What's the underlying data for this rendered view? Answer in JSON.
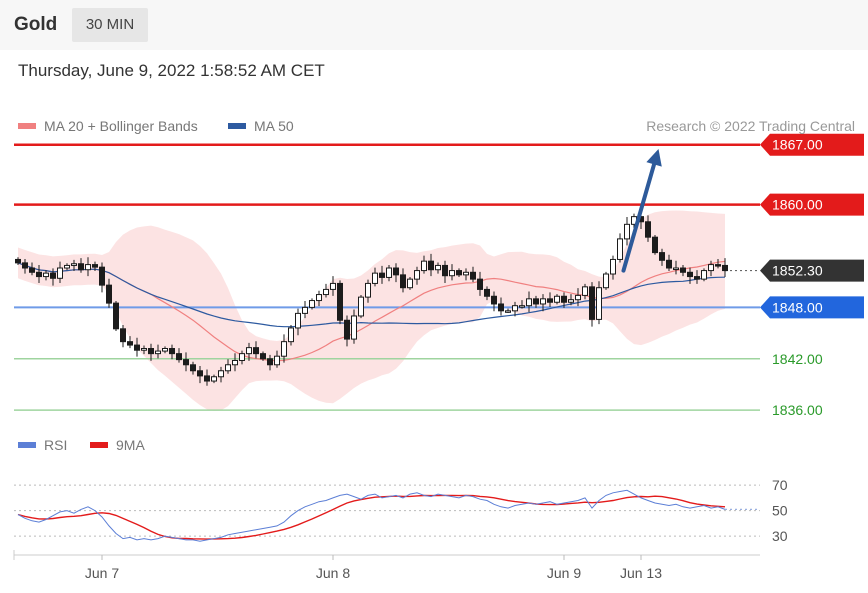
{
  "header": {
    "asset": "Gold",
    "timeframe": "30 MIN",
    "datetime": "Thursday, June 9, 2022 1:58:52 AM CET"
  },
  "chart_data": {
    "type": "candlestick",
    "legend": [
      {
        "label": "MA 20 + Bollinger Bands",
        "color": "#f08080"
      },
      {
        "label": "MA 50",
        "color": "#2d5aa0"
      }
    ],
    "credit": "Research © 2022 Trading Central",
    "ylim": [
      1834.5,
      1868.6
    ],
    "levels": [
      {
        "value": 1867.0,
        "label": "1867.00",
        "kind": "resistance",
        "color": "#e31b1b"
      },
      {
        "value": 1860.0,
        "label": "1860.00",
        "kind": "resistance",
        "color": "#e31b1b"
      },
      {
        "value": 1852.3,
        "label": "1852.30",
        "kind": "last",
        "color": "#333333"
      },
      {
        "value": 1848.0,
        "label": "1848.00",
        "kind": "pivot",
        "color": "#2266dd"
      },
      {
        "value": 1842.0,
        "label": "1842.00",
        "kind": "support",
        "color": "#2a9a2a"
      },
      {
        "value": 1836.0,
        "label": "1836.00",
        "kind": "support",
        "color": "#2a9a2a"
      }
    ],
    "x_labels": [
      {
        "label": "Jun 7",
        "index": 12
      },
      {
        "label": "Jun 8",
        "index": 45
      },
      {
        "label": "Jun 9",
        "index": 78
      },
      {
        "label": "Jun 13",
        "index": 89
      }
    ],
    "arrow": {
      "from_index": 86.5,
      "from_value": 1852.3,
      "to_index": 91.5,
      "to_value": 1866.5
    },
    "closes": [
      1853.2,
      1852.6,
      1852.1,
      1851.6,
      1852.0,
      1851.4,
      1852.6,
      1852.9,
      1853.1,
      1852.4,
      1853.0,
      1852.7,
      1850.6,
      1848.5,
      1845.5,
      1844.0,
      1843.6,
      1843.0,
      1843.2,
      1842.6,
      1842.9,
      1843.2,
      1842.6,
      1841.9,
      1841.3,
      1840.6,
      1840.0,
      1839.4,
      1839.9,
      1840.6,
      1841.3,
      1841.8,
      1842.6,
      1843.3,
      1842.6,
      1842.0,
      1841.3,
      1842.3,
      1844.0,
      1845.6,
      1847.3,
      1848.0,
      1848.8,
      1849.5,
      1850.1,
      1850.8,
      1846.5,
      1844.3,
      1847.0,
      1849.2,
      1850.8,
      1852.0,
      1851.5,
      1852.6,
      1851.8,
      1850.3,
      1851.3,
      1852.3,
      1853.4,
      1852.4,
      1852.9,
      1851.7,
      1852.3,
      1851.8,
      1852.1,
      1851.3,
      1850.1,
      1849.3,
      1848.4,
      1847.6,
      1847.6,
      1848.2,
      1848.2,
      1849.0,
      1848.4,
      1849.0,
      1848.6,
      1849.3,
      1848.6,
      1848.9,
      1849.4,
      1850.4,
      1846.6,
      1850.3,
      1851.9,
      1853.6,
      1856.0,
      1857.7,
      1858.6,
      1858.0,
      1856.2,
      1854.4,
      1853.5,
      1852.6,
      1852.6,
      1852.1,
      1851.6,
      1851.3,
      1852.3,
      1853.0,
      1852.9,
      1852.3
    ],
    "rsi_ylim": [
      23,
      78
    ],
    "rsi_ticks": [
      {
        "value": 70,
        "label": "70"
      },
      {
        "value": 50,
        "label": "50"
      },
      {
        "value": 30,
        "label": "30"
      }
    ],
    "rsi_legend": [
      {
        "label": "RSI",
        "color": "#5c7fd6"
      },
      {
        "label": "9MA",
        "color": "#e31b1b"
      }
    ],
    "rsi": [
      47,
      44,
      42,
      41,
      43,
      46,
      49,
      50,
      48,
      51,
      53,
      50,
      45,
      38,
      32,
      28,
      29,
      27,
      28,
      27,
      28,
      30,
      29,
      28,
      27,
      27,
      26,
      27,
      28,
      29,
      31,
      32,
      33,
      34,
      35,
      36,
      37,
      38,
      41,
      46,
      50,
      53,
      55,
      57,
      58,
      60,
      62,
      63,
      61,
      59,
      62,
      63,
      60,
      61,
      62,
      60,
      63,
      64,
      62,
      61,
      63,
      62,
      61,
      60,
      62,
      61,
      59,
      58,
      55,
      53,
      52,
      54,
      55,
      56,
      55,
      56,
      57,
      55,
      56,
      57,
      58,
      60,
      52,
      58,
      62,
      64,
      65,
      66,
      63,
      60,
      58,
      56,
      55,
      54,
      55,
      53,
      52,
      53,
      54,
      52,
      53,
      51
    ]
  }
}
